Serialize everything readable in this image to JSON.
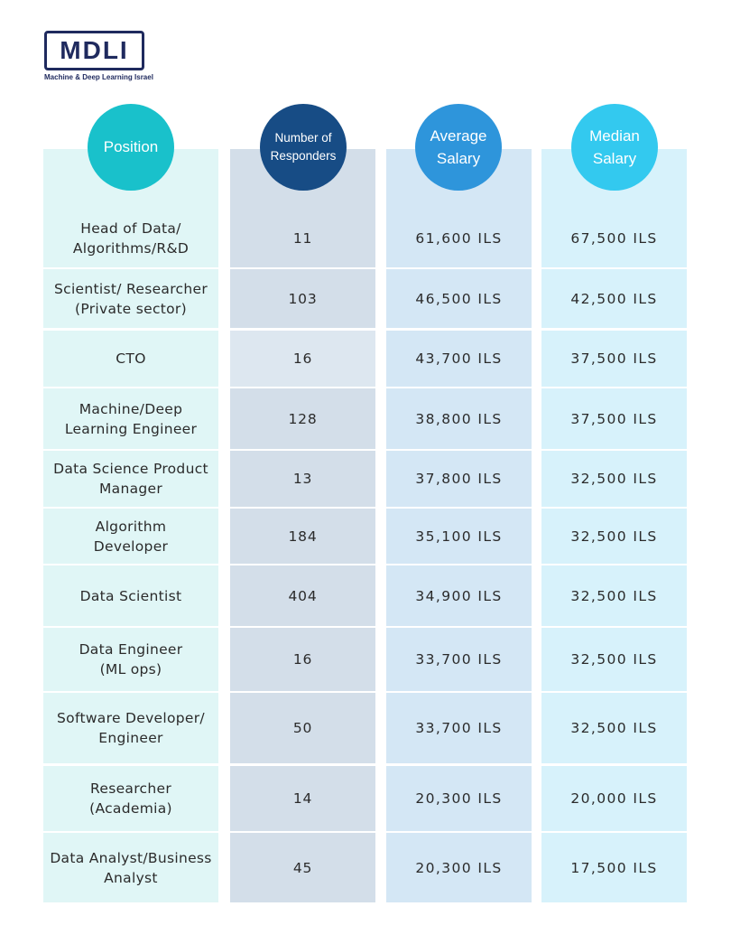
{
  "logo": {
    "text": "MDLI",
    "tagline": "Machine & Deep Learning Israel"
  },
  "headers": {
    "position": "Position",
    "responders": [
      "Number of",
      "Responders"
    ],
    "average": [
      "Average",
      "Salary"
    ],
    "median": [
      "Median",
      "Salary"
    ]
  },
  "colors": {
    "position_header": "#19c1cb",
    "responders_header": "#174c85",
    "average_header": "#2e95db",
    "median_header": "#33c9ef",
    "brand": "#1f2a5e"
  },
  "rows": [
    {
      "position": [
        "Head of Data/",
        "Algorithms/R&D"
      ],
      "responders": "11",
      "average": "61,600 ILS",
      "median": "67,500 ILS"
    },
    {
      "position": [
        "Scientist/ Researcher",
        "(Private sector)"
      ],
      "responders": "103",
      "average": "46,500 ILS",
      "median": "42,500 ILS"
    },
    {
      "position": [
        "CTO"
      ],
      "responders": "16",
      "average": "43,700 ILS",
      "median": "37,500 ILS"
    },
    {
      "position": [
        "Machine/Deep",
        "Learning Engineer"
      ],
      "responders": "128",
      "average": "38,800 ILS",
      "median": "37,500 ILS"
    },
    {
      "position": [
        "Data Science Product",
        "Manager"
      ],
      "responders": "13",
      "average": "37,800 ILS",
      "median": "32,500 ILS"
    },
    {
      "position": [
        "Algorithm",
        "Developer"
      ],
      "responders": "184",
      "average": "35,100 ILS",
      "median": "32,500 ILS"
    },
    {
      "position": [
        "Data Scientist"
      ],
      "responders": "404",
      "average": "34,900 ILS",
      "median": "32,500 ILS"
    },
    {
      "position": [
        "Data Engineer",
        "(ML ops)"
      ],
      "responders": "16",
      "average": "33,700 ILS",
      "median": "32,500 ILS"
    },
    {
      "position": [
        "Software Developer/",
        "Engineer"
      ],
      "responders": "50",
      "average": "33,700 ILS",
      "median": "32,500 ILS"
    },
    {
      "position": [
        "Researcher",
        "(Academia)"
      ],
      "responders": "14",
      "average": "20,300 ILS",
      "median": "20,000 ILS"
    },
    {
      "position": [
        "Data Analyst/Business",
        "Analyst"
      ],
      "responders": "45",
      "average": "20,300 ILS",
      "median": "17,500 ILS"
    }
  ]
}
